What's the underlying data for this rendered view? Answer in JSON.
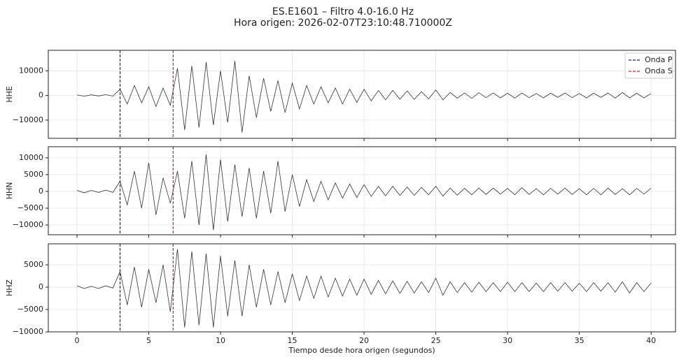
{
  "chart_data": [
    {
      "type": "line",
      "title": "ES.E1601 – Filtro 4.0-16.0 Hz",
      "subtitle": "Hora origen: 2026-02-07T23:10:48.710000Z",
      "ylabel": "HHE",
      "color": "#333333",
      "grid": true,
      "legend": "upper right",
      "markers": [
        {
          "name": "Onda P",
          "x": 3.0,
          "color": "#1a237e"
        },
        {
          "name": "Onda S",
          "x": 6.7,
          "color": "#c62828"
        }
      ],
      "ylim": [
        -17400,
        18300
      ],
      "yticks": [
        {
          "value": -10000,
          "label": "−10000"
        },
        0,
        10000
      ],
      "x": [
        0,
        0.5,
        1,
        1.5,
        2,
        2.5,
        3,
        3.5,
        4,
        4.5,
        5,
        5.5,
        6,
        6.5,
        7,
        7.5,
        8,
        8.5,
        9,
        9.5,
        10,
        10.5,
        11,
        11.5,
        12,
        12.5,
        13,
        13.5,
        14,
        14.5,
        15,
        15.5,
        16,
        16.5,
        17,
        17.5,
        18,
        18.5,
        19,
        19.5,
        20,
        20.5,
        21,
        21.5,
        22,
        22.5,
        23,
        23.5,
        24,
        24.5,
        25,
        25.5,
        26,
        26.5,
        27,
        27.5,
        28,
        28.5,
        29,
        29.5,
        30,
        30.5,
        31,
        31.5,
        32,
        32.5,
        33,
        33.5,
        34,
        34.5,
        35,
        35.5,
        36,
        36.5,
        37,
        37.5,
        38,
        38.5,
        39,
        39.5,
        40
      ],
      "values": [
        200,
        -300,
        250,
        -200,
        300,
        -250,
        2500,
        -3500,
        4000,
        -3000,
        3500,
        -4500,
        3000,
        -4000,
        11000,
        -14000,
        12000,
        -13000,
        13500,
        -12000,
        10000,
        -11000,
        14000,
        -15000,
        8000,
        -9000,
        7000,
        -6500,
        6000,
        -7000,
        5000,
        -5500,
        4000,
        -3500,
        3500,
        -3000,
        3000,
        -3500,
        2500,
        -2800,
        2500,
        -2200,
        2000,
        -1800,
        2000,
        -1500,
        1800,
        -1600,
        1500,
        -1400,
        2200,
        -1800,
        1200,
        -1100,
        1000,
        -1200,
        1100,
        -900,
        1000,
        -1000,
        900,
        -1100,
        1000,
        -900,
        800,
        -1000,
        900,
        -800,
        1000,
        -900,
        800,
        -1000,
        900,
        -800,
        1000,
        -1100,
        1200,
        -1000,
        900,
        -1000,
        800
      ]
    },
    {
      "type": "line",
      "ylabel": "HHN",
      "color": "#333333",
      "grid": true,
      "ylim": [
        -12900,
        13300
      ],
      "yticks": [
        {
          "value": -10000,
          "label": "−10000"
        },
        {
          "value": -5000,
          "label": "−5000"
        },
        0,
        5000,
        10000
      ],
      "x": [
        0,
        0.5,
        1,
        1.5,
        2,
        2.5,
        3,
        3.5,
        4,
        4.5,
        5,
        5.5,
        6,
        6.5,
        7,
        7.5,
        8,
        8.5,
        9,
        9.5,
        10,
        10.5,
        11,
        11.5,
        12,
        12.5,
        13,
        13.5,
        14,
        14.5,
        15,
        15.5,
        16,
        16.5,
        17,
        17.5,
        18,
        18.5,
        19,
        19.5,
        20,
        20.5,
        21,
        21.5,
        22,
        22.5,
        23,
        23.5,
        24,
        24.5,
        25,
        25.5,
        26,
        26.5,
        27,
        27.5,
        28,
        28.5,
        29,
        29.5,
        30,
        30.5,
        31,
        31.5,
        32,
        32.5,
        33,
        33.5,
        34,
        34.5,
        35,
        35.5,
        36,
        36.5,
        37,
        37.5,
        38,
        38.5,
        39,
        39.5,
        40
      ],
      "values": [
        300,
        -400,
        300,
        -300,
        400,
        -300,
        3000,
        -4000,
        6000,
        -5000,
        8500,
        -7000,
        4000,
        -3500,
        6000,
        -8000,
        9000,
        -10000,
        11000,
        -11500,
        9500,
        -9000,
        8000,
        -7500,
        7000,
        -8000,
        6000,
        -6500,
        9000,
        -6000,
        5000,
        -4500,
        3500,
        -3000,
        3000,
        -2500,
        2500,
        -2000,
        2200,
        -1800,
        2000,
        -1500,
        1500,
        -1300,
        1500,
        -1200,
        1300,
        -1200,
        1200,
        -1000,
        1500,
        -1400,
        1000,
        -1100,
        900,
        -1000,
        1000,
        -900,
        1000,
        -800,
        900,
        -1000,
        1100,
        -900,
        800,
        -1000,
        900,
        -800,
        1000,
        -900,
        800,
        -1000,
        900,
        -1000,
        1000,
        -900,
        800,
        -1000,
        900,
        -800,
        900
      ]
    },
    {
      "type": "line",
      "ylabel": "HHZ",
      "xlabel": "Tiempo desde hora origen (segundos)",
      "color": "#333333",
      "grid": true,
      "xlim": [
        -2,
        41.7
      ],
      "xticks": [
        0,
        5,
        10,
        15,
        20,
        25,
        30,
        35,
        40
      ],
      "ylim": [
        -10000,
        9700
      ],
      "yticks": [
        {
          "value": -10000,
          "label": "−10000"
        },
        {
          "value": -5000,
          "label": "−5000"
        },
        0,
        5000
      ],
      "x": [
        0,
        0.5,
        1,
        1.5,
        2,
        2.5,
        3,
        3.5,
        4,
        4.5,
        5,
        5.5,
        6,
        6.5,
        7,
        7.5,
        8,
        8.5,
        9,
        9.5,
        10,
        10.5,
        11,
        11.5,
        12,
        12.5,
        13,
        13.5,
        14,
        14.5,
        15,
        15.5,
        16,
        16.5,
        17,
        17.5,
        18,
        18.5,
        19,
        19.5,
        20,
        20.5,
        21,
        21.5,
        22,
        22.5,
        23,
        23.5,
        24,
        24.5,
        25,
        25.5,
        26,
        26.5,
        27,
        27.5,
        28,
        28.5,
        29,
        29.5,
        30,
        30.5,
        31,
        31.5,
        32,
        32.5,
        33,
        33.5,
        34,
        34.5,
        35,
        35.5,
        36,
        36.5,
        37,
        37.5,
        38,
        38.5,
        39,
        39.5,
        40
      ],
      "values": [
        300,
        -300,
        200,
        -300,
        300,
        -200,
        3500,
        -4000,
        4500,
        -4500,
        4000,
        -3500,
        5000,
        -5500,
        8500,
        -9000,
        8000,
        -8500,
        7500,
        -9000,
        7000,
        -6500,
        6000,
        -6500,
        5000,
        -4500,
        4000,
        -4000,
        3500,
        -3500,
        3000,
        -3000,
        2500,
        -2500,
        2500,
        -2200,
        2000,
        -2000,
        1800,
        -1800,
        1800,
        -1600,
        1500,
        -1500,
        1400,
        -1400,
        1300,
        -1300,
        1200,
        -1200,
        2000,
        -1800,
        1200,
        -1200,
        1000,
        -1100,
        1100,
        -1000,
        1000,
        -1000,
        1100,
        -1000,
        1000,
        -1000,
        900,
        -1000,
        1000,
        -900,
        1000,
        -900,
        900,
        -1000,
        1000,
        -900,
        1000,
        -1100,
        1200,
        -1300,
        1000,
        -1000,
        900
      ]
    }
  ]
}
